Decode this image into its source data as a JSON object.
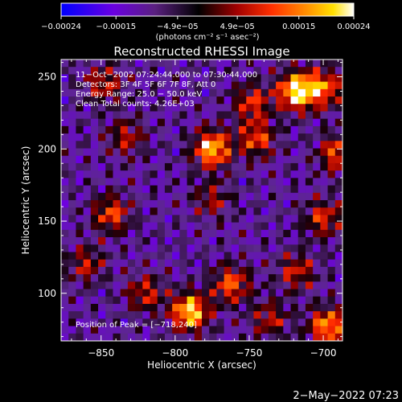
{
  "chart_data": {
    "type": "heatmap",
    "title": "Reconstructed RHESSI Image",
    "xlabel": "Heliocentric X (arcsec)",
    "ylabel": "Heliocentric Y (arcsec)",
    "xlim": [
      -877,
      -687
    ],
    "ylim": [
      67,
      262
    ],
    "x_ticks": [
      -850,
      -800,
      -750,
      -700
    ],
    "x_tick_labels": [
      "−850",
      "−800",
      "−750",
      "−700"
    ],
    "y_ticks": [
      100,
      150,
      200,
      250
    ],
    "y_tick_labels": [
      "100",
      "150",
      "200",
      "250"
    ],
    "grid": false,
    "colorbar": {
      "unit_label": "(photons cm⁻² s⁻¹ asec⁻²)",
      "range": [
        -0.00024,
        0.00024
      ],
      "ticks": [
        -0.00024,
        -0.00015,
        -4.9e-05,
        4.9e-05,
        0.00015,
        0.00024
      ],
      "tick_labels": [
        "−0.00024",
        "−0.00015",
        "−4.9e−05",
        "4.9e−05",
        "0.00015",
        "0.00024"
      ],
      "colors": [
        "#0000ff",
        "#6a00e0",
        "#5a2080",
        "#000000",
        "#a00000",
        "#ff3000",
        "#ff9000",
        "#ffe000",
        "#ffffff"
      ]
    },
    "annotations": [
      "11−Oct−2002 07:24:44.000 to 07:30:44.000",
      "Detectors: 3F 4F 5F 6F 7F 8F, Att 0",
      "Energy Range: 25.0 − 50.0 keV",
      "Clean    Total counts: 4.26E+03"
    ],
    "peak_label": "Position of Peak = [−718,240]",
    "peak_position": [
      -718,
      240
    ],
    "hot_spots": [
      {
        "x": -718,
        "y": 240,
        "intensity": 0.98
      },
      {
        "x": -775,
        "y": 200,
        "intensity": 0.85
      },
      {
        "x": -790,
        "y": 87,
        "intensity": 0.9
      },
      {
        "x": -745,
        "y": 207,
        "intensity": 0.55
      },
      {
        "x": -748,
        "y": 232,
        "intensity": 0.5
      },
      {
        "x": -700,
        "y": 242,
        "intensity": 0.65
      },
      {
        "x": -762,
        "y": 106,
        "intensity": 0.6
      },
      {
        "x": -843,
        "y": 155,
        "intensity": 0.55
      },
      {
        "x": -697,
        "y": 77,
        "intensity": 0.75
      },
      {
        "x": -690,
        "y": 197,
        "intensity": 0.6
      },
      {
        "x": -848,
        "y": 245,
        "intensity": 0.45
      },
      {
        "x": -820,
        "y": 100,
        "intensity": 0.45
      },
      {
        "x": -860,
        "y": 120,
        "intensity": 0.4
      },
      {
        "x": -700,
        "y": 152,
        "intensity": 0.5
      },
      {
        "x": -833,
        "y": 208,
        "intensity": 0.4
      },
      {
        "x": -718,
        "y": 115,
        "intensity": 0.45
      },
      {
        "x": -775,
        "y": 165,
        "intensity": 0.35
      },
      {
        "x": -736,
        "y": 82,
        "intensity": 0.4
      }
    ]
  },
  "footer": {
    "timestamp": "2−May−2022 07:23"
  }
}
